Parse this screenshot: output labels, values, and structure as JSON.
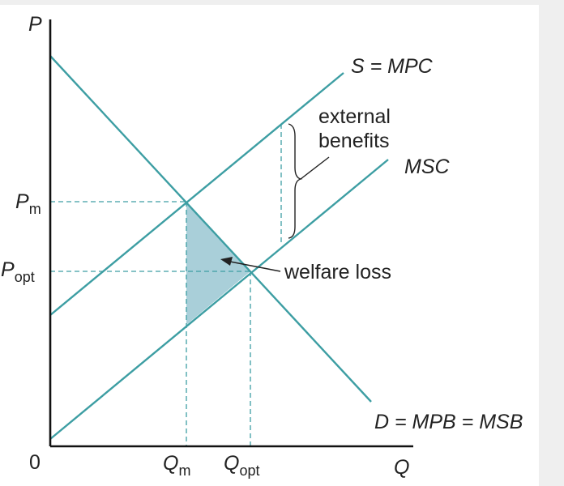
{
  "axes": {
    "y_label": "P",
    "x_label": "Q",
    "origin": "0"
  },
  "price_labels": {
    "pm_main": "P",
    "pm_sub": "m",
    "popt_main": "P",
    "popt_sub": "opt"
  },
  "quantity_labels": {
    "qm_main": "Q",
    "qm_sub": "m",
    "qopt_main": "Q",
    "qopt_sub": "opt"
  },
  "curve_labels": {
    "supply": "S = MPC",
    "msc": "MSC",
    "demand": "D = MPB = MSB"
  },
  "annotations": {
    "external_line1": "external",
    "external_line2": "benefits",
    "welfare_loss": "welfare loss"
  },
  "colors": {
    "curve": "#3d9ea3",
    "welfare_fill": "#a9cfd9",
    "axis": "#111111"
  }
}
